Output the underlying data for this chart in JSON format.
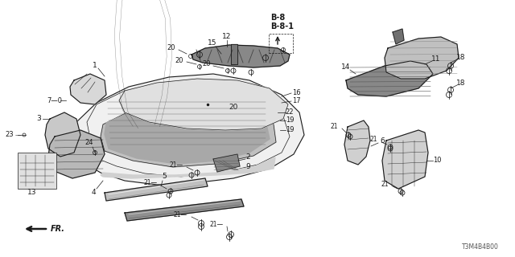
{
  "background_color": "#ffffff",
  "diagram_code": "T3M4B4B00",
  "line_color": "#1a1a1a",
  "b8": "B-8",
  "b81": "B-8-1",
  "fr": "FR."
}
